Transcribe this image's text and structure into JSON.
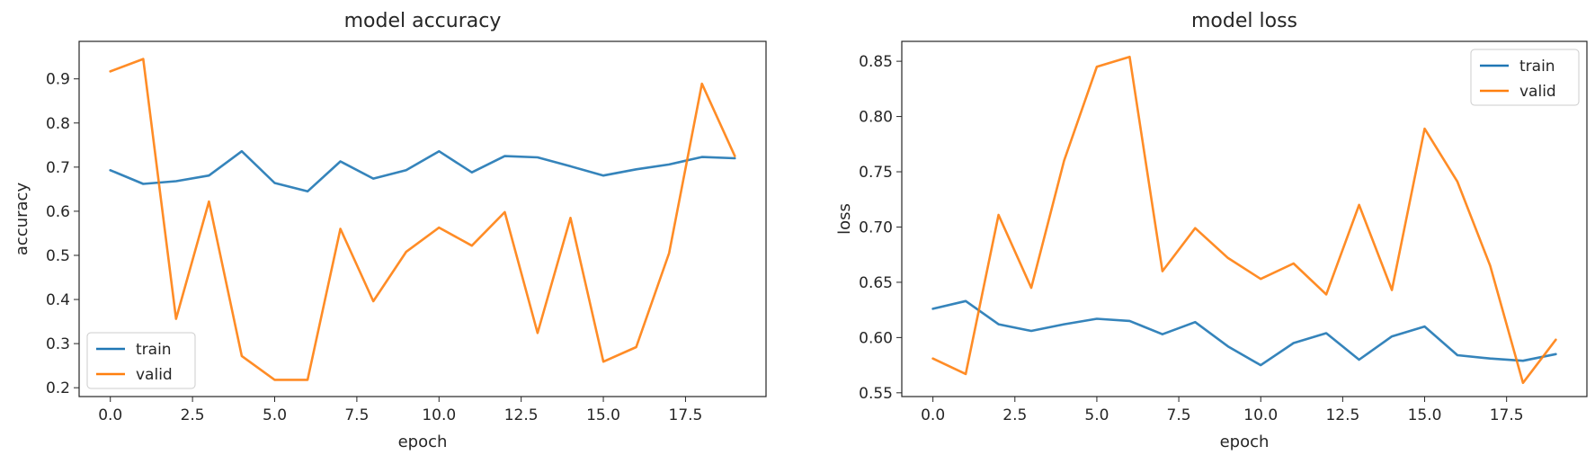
{
  "chart_data": [
    {
      "type": "line",
      "title": "model accuracy",
      "xlabel": "epoch",
      "ylabel": "accuracy",
      "xlim": [
        -0.95,
        19.95
      ],
      "ylim": [
        0.18,
        0.985
      ],
      "xticks": [
        0,
        2.5,
        5,
        7.5,
        10,
        12.5,
        15,
        17.5
      ],
      "xtick_labels": [
        "0.0",
        "2.5",
        "5.0",
        "7.5",
        "10.0",
        "12.5",
        "15.0",
        "17.5"
      ],
      "yticks": [
        0.2,
        0.3,
        0.4,
        0.5,
        0.6,
        0.7,
        0.8,
        0.9
      ],
      "ytick_labels": [
        "0.2",
        "0.3",
        "0.4",
        "0.5",
        "0.6",
        "0.7",
        "0.8",
        "0.9"
      ],
      "x": [
        0,
        1,
        2,
        3,
        4,
        5,
        6,
        7,
        8,
        9,
        10,
        11,
        12,
        13,
        14,
        15,
        16,
        17,
        18,
        19
      ],
      "series": [
        {
          "name": "train",
          "color": "#1f77b4",
          "values": [
            0.693,
            0.662,
            0.668,
            0.681,
            0.736,
            0.664,
            0.645,
            0.713,
            0.674,
            0.693,
            0.736,
            0.688,
            0.725,
            0.722,
            0.702,
            0.681,
            0.695,
            0.706,
            0.723,
            0.72
          ]
        },
        {
          "name": "valid",
          "color": "#ff7f0e",
          "values": [
            0.917,
            0.945,
            0.356,
            0.622,
            0.272,
            0.218,
            0.218,
            0.56,
            0.396,
            0.508,
            0.563,
            0.522,
            0.598,
            0.324,
            0.585,
            0.259,
            0.292,
            0.505,
            0.889,
            0.725
          ]
        }
      ],
      "legend": "lower-left"
    },
    {
      "type": "line",
      "title": "model loss",
      "xlabel": "epoch",
      "ylabel": "loss",
      "xlim": [
        -0.95,
        19.95
      ],
      "ylim": [
        0.5466,
        0.868
      ],
      "xticks": [
        0,
        2.5,
        5,
        7.5,
        10,
        12.5,
        15,
        17.5
      ],
      "xtick_labels": [
        "0.0",
        "2.5",
        "5.0",
        "7.5",
        "10.0",
        "12.5",
        "15.0",
        "17.5"
      ],
      "yticks": [
        0.55,
        0.6,
        0.65,
        0.7,
        0.75,
        0.8,
        0.85
      ],
      "ytick_labels": [
        "0.55",
        "0.60",
        "0.65",
        "0.70",
        "0.75",
        "0.80",
        "0.85"
      ],
      "x": [
        0,
        1,
        2,
        3,
        4,
        5,
        6,
        7,
        8,
        9,
        10,
        11,
        12,
        13,
        14,
        15,
        16,
        17,
        18,
        19
      ],
      "series": [
        {
          "name": "train",
          "color": "#1f77b4",
          "values": [
            0.626,
            0.633,
            0.612,
            0.606,
            0.612,
            0.617,
            0.615,
            0.603,
            0.614,
            0.592,
            0.575,
            0.595,
            0.604,
            0.58,
            0.601,
            0.61,
            0.584,
            0.581,
            0.579,
            0.585
          ]
        },
        {
          "name": "valid",
          "color": "#ff7f0e",
          "values": [
            0.581,
            0.567,
            0.711,
            0.645,
            0.76,
            0.845,
            0.854,
            0.66,
            0.699,
            0.672,
            0.653,
            0.667,
            0.639,
            0.72,
            0.643,
            0.789,
            0.741,
            0.665,
            0.559,
            0.598
          ]
        }
      ],
      "legend": "upper-right"
    }
  ]
}
